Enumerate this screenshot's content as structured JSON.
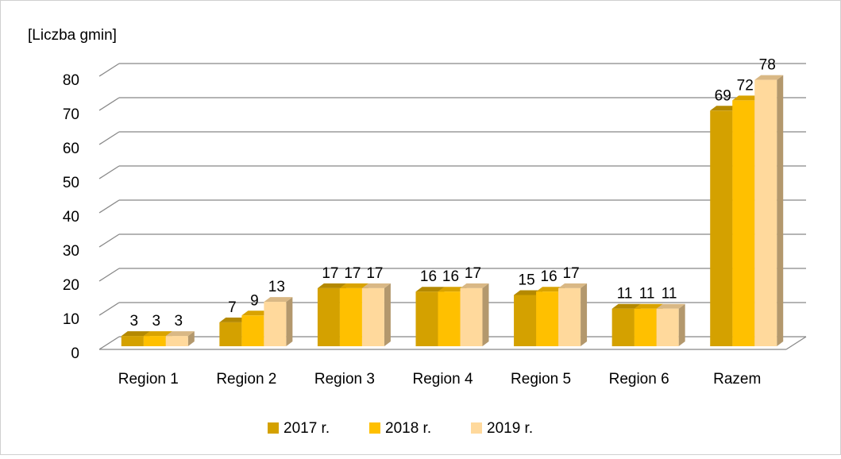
{
  "chart_data": {
    "type": "bar3d",
    "y_axis_label": "[Liczba gmin]",
    "categories": [
      "Region 1",
      "Region 2",
      "Region 3",
      "Region 4",
      "Region 5",
      "Region 6",
      "Razem"
    ],
    "series": [
      {
        "name": "2017 r.",
        "color": "#d4a100",
        "values": [
          3,
          7,
          17,
          16,
          15,
          11,
          69
        ]
      },
      {
        "name": "2018 r.",
        "color": "#ffc000",
        "values": [
          3,
          9,
          17,
          16,
          16,
          11,
          72
        ]
      },
      {
        "name": "2019 r.",
        "color": "#ffd99c",
        "values": [
          3,
          13,
          17,
          17,
          17,
          11,
          78
        ]
      }
    ],
    "ylim": [
      0,
      80
    ],
    "yticks": [
      0,
      10,
      20,
      30,
      40,
      50,
      60,
      70,
      80
    ],
    "grid": true,
    "legend": "bottom"
  }
}
